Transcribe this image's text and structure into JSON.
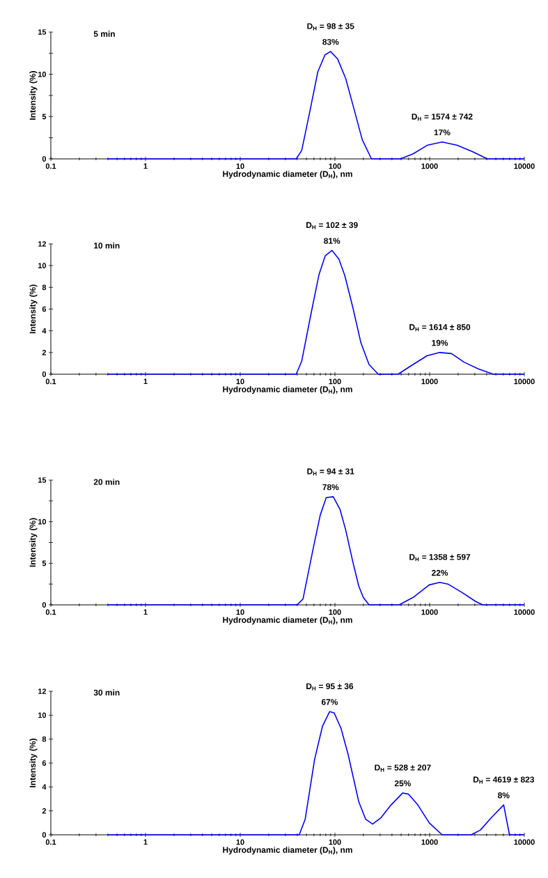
{
  "chart_data": [
    {
      "type": "line",
      "title": "5 min",
      "xlabel": "Hydrodynamic diameter (D$_{H}$), nm",
      "ylabel": "Intensity (%)",
      "log": "x",
      "marker": "none",
      "line_style": "solid",
      "xlim": [
        0.1,
        10000
      ],
      "xticks": [
        0.1,
        1,
        10,
        100,
        1000,
        10000
      ],
      "ylim": [
        0,
        15
      ],
      "yticks": [
        0,
        {
          "value": 2.5,
          "label": null
        },
        5,
        {
          "value": 7.5,
          "label": null
        },
        10,
        {
          "value": 12.5,
          "label": null
        },
        15
      ],
      "x": [
        0.4,
        39,
        44.6,
        54.3,
        66,
        78.5,
        90,
        107,
        130,
        159,
        194,
        243,
        491,
        670,
        940,
        1355,
        1960,
        2900,
        4070,
        10000
      ],
      "series": [
        {
          "color": "#0000ff",
          "values": [
            0,
            0,
            1.0,
            5.6,
            10.3,
            12.3,
            12.7,
            11.8,
            9.5,
            5.9,
            2.3,
            0,
            0,
            0.6,
            1.6,
            2.0,
            1.6,
            0.8,
            0,
            0
          ]
        }
      ],
      "annotations": [
        {
          "text": "D$_{H}$ = 98 ± 35",
          "x": 90,
          "y": 12.7
        },
        {
          "text": "83%",
          "x": 90,
          "y": 12.7
        },
        {
          "text": "D$_{H}$ = 1574 ± 742",
          "x": 1355,
          "y": 2.0
        },
        {
          "text": "17%",
          "x": 1355,
          "y": 2.0
        }
      ]
    },
    {
      "type": "line",
      "title": "10 min",
      "xlabel": "Hydrodynamic diameter (D$_{H}$), nm",
      "ylabel": "Intensity (%)",
      "log": "x",
      "marker": "none",
      "line_style": "solid",
      "xlim": [
        0.1,
        10000
      ],
      "xticks": [
        0.1,
        1,
        10,
        100,
        1000,
        10000
      ],
      "ylim": [
        0,
        12
      ],
      "yticks": [
        0,
        2,
        4,
        6,
        8,
        10,
        12
      ],
      "x": [
        0.4,
        39,
        44.6,
        56,
        68,
        79,
        93,
        110,
        127,
        155,
        188,
        229,
        287,
        464,
        670,
        940,
        1280,
        1700,
        2320,
        3250,
        4690,
        10000
      ],
      "series": [
        {
          "color": "#0000ff",
          "values": [
            0,
            0,
            1.2,
            5.6,
            9.2,
            10.9,
            11.4,
            10.6,
            9.1,
            6.1,
            2.9,
            0.9,
            0,
            0,
            0.9,
            1.7,
            2.0,
            1.9,
            1.1,
            0.5,
            0,
            0
          ]
        }
      ],
      "annotations": [
        {
          "text": "D$_{H}$ = 102 ± 39",
          "x": 93,
          "y": 11.4
        },
        {
          "text": "81%",
          "x": 93,
          "y": 11.4
        },
        {
          "text": "D$_{H}$ = 1614 ± 850",
          "x": 1280,
          "y": 2.0
        },
        {
          "text": "19%",
          "x": 1280,
          "y": 2.0
        }
      ]
    },
    {
      "type": "line",
      "title": "20 min",
      "xlabel": "Hydrodynamic diameter (D$_{H}$), nm",
      "ylabel": "Intensity (%)",
      "log": "x",
      "marker": "none",
      "line_style": "solid",
      "xlim": [
        0.1,
        10000
      ],
      "xticks": [
        0.1,
        1,
        10,
        100,
        1000,
        10000
      ],
      "ylim": [
        0,
        15
      ],
      "yticks": [
        0,
        {
          "value": 2.5,
          "label": null
        },
        5,
        {
          "value": 7.5,
          "label": null
        },
        10,
        {
          "value": 12.5,
          "label": null
        },
        15
      ],
      "x": [
        0.4,
        40,
        46,
        59,
        70,
        81,
        96,
        113,
        130,
        155,
        178,
        199,
        229,
        477,
        670,
        990,
        1280,
        1560,
        2190,
        3070,
        3640,
        10000
      ],
      "series": [
        {
          "color": "#0000ff",
          "values": [
            0,
            0,
            0.7,
            6.8,
            10.8,
            12.9,
            13.0,
            11.5,
            9.0,
            5.1,
            2.3,
            0.9,
            0,
            0,
            0.9,
            2.4,
            2.7,
            2.5,
            1.5,
            0.4,
            0,
            0
          ]
        }
      ],
      "annotations": [
        {
          "text": "D$_{H}$ = 94 ± 31",
          "x": 90,
          "y": 13.0
        },
        {
          "text": "78%",
          "x": 90,
          "y": 13.0
        },
        {
          "text": "D$_{H}$ = 1358 ± 597",
          "x": 1280,
          "y": 2.7
        },
        {
          "text": "22%",
          "x": 1280,
          "y": 2.7
        }
      ]
    },
    {
      "type": "line",
      "title": "30 min",
      "xlabel": "Hydrodynamic diameter (D$_{H}$), nm",
      "ylabel": "Intensity (%)",
      "log": "x",
      "marker": "none",
      "line_style": "solid",
      "xlim": [
        0.1,
        10000
      ],
      "xticks": [
        0.1,
        1,
        10,
        100,
        1000,
        10000
      ],
      "ylim": [
        0,
        12
      ],
      "yticks": [
        0,
        2,
        4,
        6,
        8,
        10,
        12
      ],
      "x": [
        0.4,
        42,
        48.5,
        61,
        74,
        88,
        98,
        116,
        138,
        178,
        211,
        250,
        304,
        392,
        520,
        599,
        750,
        990,
        1355,
        2750,
        3440,
        4440,
        6050,
        6970,
        10000
      ],
      "series": [
        {
          "color": "#0000ff",
          "values": [
            0,
            0,
            1.3,
            6.3,
            9.1,
            10.3,
            10.2,
            8.9,
            6.7,
            2.8,
            1.3,
            0.9,
            1.4,
            2.5,
            3.5,
            3.4,
            2.5,
            1.0,
            0,
            0,
            0.4,
            1.4,
            2.5,
            0,
            0
          ]
        }
      ],
      "annotations": [
        {
          "text": "D$_{H}$ = 95 ± 36",
          "x": 88,
          "y": 10.3
        },
        {
          "text": "67%",
          "x": 88,
          "y": 10.3
        },
        {
          "text": "D$_{H}$ = 528 ± 207",
          "x": 520,
          "y": 3.5
        },
        {
          "text": "25%",
          "x": 520,
          "y": 3.5
        },
        {
          "text": "D$_{H}$ = 4619 ± 823",
          "x": 6050,
          "y": 2.5
        },
        {
          "text": "8%",
          "x": 6050,
          "y": 2.5
        }
      ]
    }
  ]
}
